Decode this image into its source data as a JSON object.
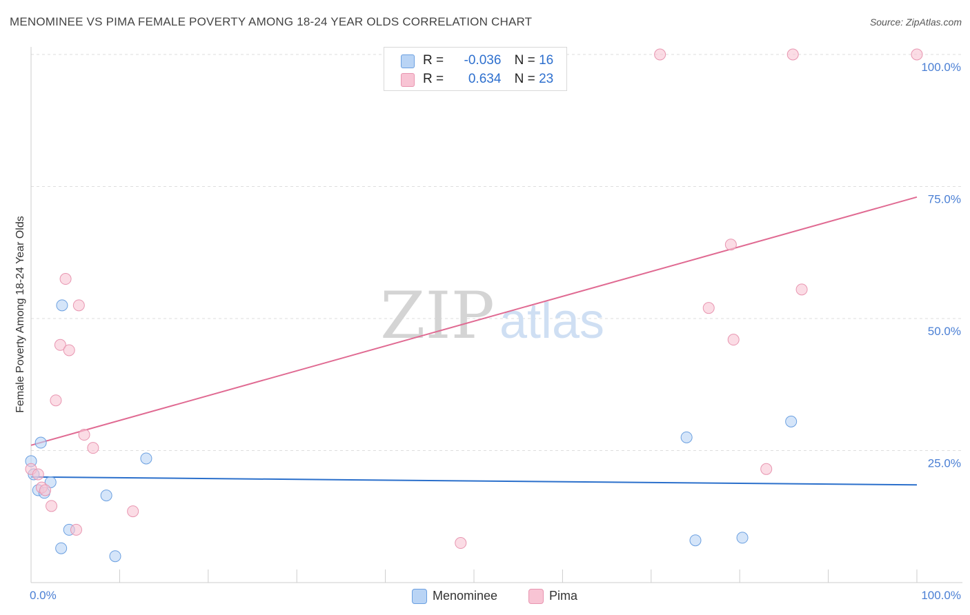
{
  "title": "MENOMINEE VS PIMA FEMALE POVERTY AMONG 18-24 YEAR OLDS CORRELATION CHART",
  "source": "Source: ZipAtlas.com",
  "watermark": {
    "zip": "ZIP",
    "atlas": "atlas"
  },
  "colors": {
    "menominee_fill": "#b9d4f5",
    "menominee_stroke": "#6a9fe0",
    "menominee_line": "#2a6fcb",
    "pima_fill": "#f8c4d4",
    "pima_stroke": "#e895b0",
    "pima_line": "#e06a92",
    "grid": "#dddddd",
    "axis_label": "#4a7fd4"
  },
  "legend_top": {
    "rows": [
      {
        "r_label": "R =",
        "r_value": "-0.036",
        "n_label": "N =",
        "n_value": "16"
      },
      {
        "r_label": "R =",
        "r_value": "0.634",
        "n_label": "N =",
        "n_value": "23"
      }
    ]
  },
  "legend_bottom": [
    "Menominee",
    "Pima"
  ],
  "chart_data": {
    "type": "scatter",
    "title": "MENOMINEE VS PIMA FEMALE POVERTY AMONG 18-24 YEAR OLDS CORRELATION CHART",
    "xlabel": "",
    "ylabel": "Female Poverty Among 18-24 Year Olds",
    "xlim": [
      0,
      100
    ],
    "ylim": [
      0,
      100
    ],
    "x_tick_labels": [
      "0.0%",
      "100.0%"
    ],
    "y_ticks": [
      25,
      50,
      75,
      100
    ],
    "y_tick_labels": [
      "25.0%",
      "50.0%",
      "75.0%",
      "100.0%"
    ],
    "grid": true,
    "legend_position": "top-center",
    "series": [
      {
        "name": "Menominee",
        "points": [
          [
            0.0,
            23.0
          ],
          [
            0.8,
            17.5
          ],
          [
            1.1,
            26.5
          ],
          [
            1.5,
            17.0
          ],
          [
            2.2,
            19.0
          ],
          [
            3.5,
            52.5
          ],
          [
            3.4,
            6.5
          ],
          [
            4.3,
            10.0
          ],
          [
            8.5,
            16.5
          ],
          [
            9.5,
            5.0
          ],
          [
            13.0,
            23.5
          ],
          [
            74.0,
            27.5
          ],
          [
            75.0,
            8.0
          ],
          [
            80.3,
            8.5
          ],
          [
            85.8,
            30.5
          ],
          [
            0.3,
            20.5
          ]
        ],
        "trend": {
          "start": [
            0,
            20.0
          ],
          "end": [
            100,
            18.5
          ]
        }
      },
      {
        "name": "Pima",
        "points": [
          [
            0.0,
            21.5
          ],
          [
            0.8,
            20.5
          ],
          [
            1.2,
            18.0
          ],
          [
            2.3,
            14.5
          ],
          [
            2.8,
            34.5
          ],
          [
            3.3,
            45.0
          ],
          [
            3.9,
            57.5
          ],
          [
            4.3,
            44.0
          ],
          [
            5.1,
            10.0
          ],
          [
            5.4,
            52.5
          ],
          [
            6.0,
            28.0
          ],
          [
            7.0,
            25.5
          ],
          [
            11.5,
            13.5
          ],
          [
            48.5,
            7.5
          ],
          [
            71.0,
            100.0
          ],
          [
            76.5,
            52.0
          ],
          [
            79.0,
            64.0
          ],
          [
            79.3,
            46.0
          ],
          [
            83.0,
            21.5
          ],
          [
            86.0,
            100.0
          ],
          [
            87.0,
            55.5
          ],
          [
            100.0,
            100.0
          ],
          [
            1.6,
            17.5
          ]
        ],
        "trend": {
          "start": [
            0,
            26.0
          ],
          "end": [
            100,
            73.0
          ]
        }
      }
    ]
  }
}
